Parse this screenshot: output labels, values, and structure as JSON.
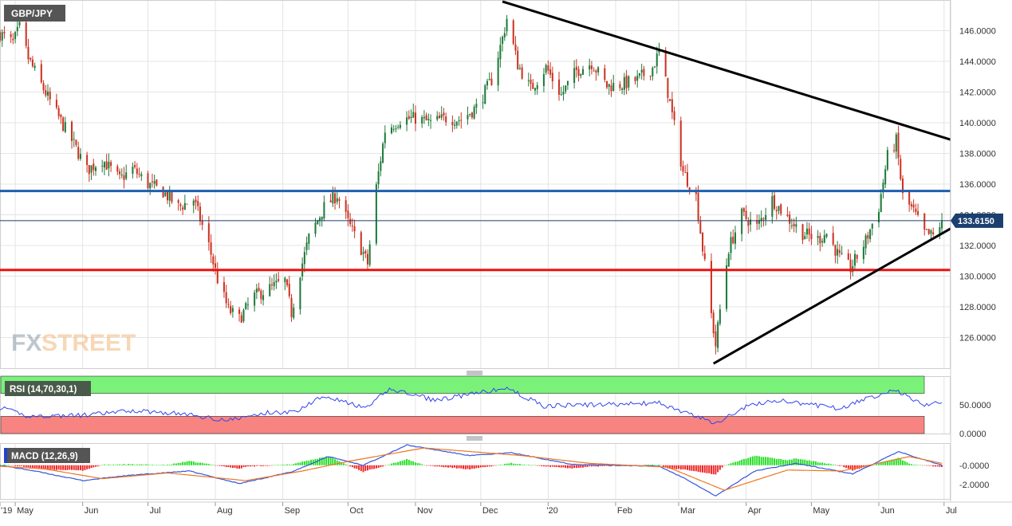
{
  "symbol_label": "GBP/JPY",
  "watermark": {
    "fx": "FX",
    "street": "STREET"
  },
  "colors": {
    "up": "#1f7a3a",
    "down": "#cc3322",
    "grid": "#e4e4e4",
    "resistance": "#1f5fae",
    "support": "#ee1111",
    "trend": "#000000",
    "rsi_line": "#3344ee",
    "macd_line": "#3355dd",
    "signal_line": "#ee7722",
    "hist_up": "#22dd22",
    "hist_down": "#ee2222",
    "rsi_overbought_fill": "#7af27a",
    "rsi_oversold_fill": "#f78480",
    "price_label_bg": "#1b3f6e"
  },
  "chart_data": [
    {
      "type": "candlestick",
      "title": "GBP/JPY",
      "ylim": [
        124.0,
        148.0
      ],
      "y_ticks": [
        "146.0000",
        "144.0000",
        "142.0000",
        "140.0000",
        "138.0000",
        "136.0000",
        "134.0000",
        "132.0000",
        "130.0000",
        "128.0000",
        "126.0000"
      ],
      "last_price_label": "133.6150",
      "last_price": 133.615,
      "resistance_level": 135.55,
      "support_level": 130.4,
      "trendlines": [
        {
          "name": "Descending resistance",
          "from": [
            "2019-12-11",
            147.9
          ],
          "to": [
            "2020-07-04",
            138.9
          ]
        },
        {
          "name": "Ascending support",
          "from": [
            "2020-03-17",
            124.3
          ],
          "to": [
            "2020-07-04",
            133.1
          ]
        }
      ],
      "x_start": "2019-04-24",
      "x_end": "2020-07-04",
      "x_ticks": [
        {
          "label": "'19",
          "date": "2019-04-24"
        },
        {
          "label": "May",
          "date": "2019-05-01"
        },
        {
          "label": "Jun",
          "date": "2019-06-01"
        },
        {
          "label": "Jul",
          "date": "2019-07-01"
        },
        {
          "label": "Aug",
          "date": "2019-08-01"
        },
        {
          "label": "Sep",
          "date": "2019-09-01"
        },
        {
          "label": "Oct",
          "date": "2019-10-01"
        },
        {
          "label": "Nov",
          "date": "2019-11-01"
        },
        {
          "label": "Dec",
          "date": "2019-12-01"
        },
        {
          "label": "'20",
          "date": "2020-01-01"
        },
        {
          "label": "Feb",
          "date": "2020-02-01"
        },
        {
          "label": "Mar",
          "date": "2020-03-01"
        },
        {
          "label": "Apr",
          "date": "2020-04-01"
        },
        {
          "label": "May",
          "date": "2020-05-01"
        },
        {
          "label": "Jun",
          "date": "2020-06-01"
        },
        {
          "label": "Jul",
          "date": "2020-07-01"
        }
      ],
      "close_anchors": [
        [
          "2019-04-24",
          145.8
        ],
        [
          "2019-04-30",
          145.2
        ],
        [
          "2019-05-03",
          146.2
        ],
        [
          "2019-05-07",
          144.2
        ],
        [
          "2019-05-14",
          142.2
        ],
        [
          "2019-05-20",
          140.6
        ],
        [
          "2019-05-28",
          138.6
        ],
        [
          "2019-06-03",
          136.9
        ],
        [
          "2019-06-10",
          137.6
        ],
        [
          "2019-06-18",
          136.3
        ],
        [
          "2019-06-24",
          137.0
        ],
        [
          "2019-07-01",
          136.0
        ],
        [
          "2019-07-08",
          135.5
        ],
        [
          "2019-07-15",
          134.5
        ],
        [
          "2019-07-22",
          135.0
        ],
        [
          "2019-07-29",
          132.0
        ],
        [
          "2019-08-02",
          129.8
        ],
        [
          "2019-08-07",
          127.8
        ],
        [
          "2019-08-12",
          127.2
        ],
        [
          "2019-08-19",
          128.7
        ],
        [
          "2019-08-26",
          129.2
        ],
        [
          "2019-09-02",
          129.7
        ],
        [
          "2019-09-05",
          127.6
        ],
        [
          "2019-09-09",
          130.3
        ],
        [
          "2019-09-13",
          132.5
        ],
        [
          "2019-09-20",
          134.5
        ],
        [
          "2019-09-26",
          135.3
        ],
        [
          "2019-10-01",
          133.5
        ],
        [
          "2019-10-08",
          131.5
        ],
        [
          "2019-10-10",
          130.8
        ],
        [
          "2019-10-14",
          135.8
        ],
        [
          "2019-10-18",
          139.5
        ],
        [
          "2019-10-25",
          140.2
        ],
        [
          "2019-11-01",
          140.3
        ],
        [
          "2019-11-08",
          140.0
        ],
        [
          "2019-11-15",
          140.3
        ],
        [
          "2019-11-22",
          140.2
        ],
        [
          "2019-11-29",
          141.0
        ],
        [
          "2019-12-06",
          142.8
        ],
        [
          "2019-12-11",
          145.5
        ],
        [
          "2019-12-13",
          146.8
        ],
        [
          "2019-12-18",
          143.8
        ],
        [
          "2019-12-24",
          142.2
        ],
        [
          "2019-12-31",
          143.6
        ],
        [
          "2020-01-07",
          141.8
        ],
        [
          "2020-01-14",
          143.4
        ],
        [
          "2020-01-21",
          143.9
        ],
        [
          "2020-01-28",
          142.4
        ],
        [
          "2020-02-04",
          142.5
        ],
        [
          "2020-02-11",
          142.8
        ],
        [
          "2020-02-18",
          143.6
        ],
        [
          "2020-02-21",
          144.6
        ],
        [
          "2020-02-25",
          142.0
        ],
        [
          "2020-03-03",
          136.8
        ],
        [
          "2020-03-09",
          135.2
        ],
        [
          "2020-03-12",
          131.8
        ],
        [
          "2020-03-16",
          127.5
        ],
        [
          "2020-03-18",
          125.5
        ],
        [
          "2020-03-20",
          127.8
        ],
        [
          "2020-03-24",
          131.8
        ],
        [
          "2020-03-30",
          134.0
        ],
        [
          "2020-04-06",
          133.2
        ],
        [
          "2020-04-13",
          135.0
        ],
        [
          "2020-04-20",
          133.8
        ],
        [
          "2020-04-27",
          132.8
        ],
        [
          "2020-05-04",
          132.4
        ],
        [
          "2020-05-08",
          132.8
        ],
        [
          "2020-05-14",
          131.2
        ],
        [
          "2020-05-19",
          130.5
        ],
        [
          "2020-05-26",
          132.3
        ],
        [
          "2020-06-01",
          134.5
        ],
        [
          "2020-06-05",
          137.8
        ],
        [
          "2020-06-09",
          138.8
        ],
        [
          "2020-06-12",
          135.2
        ],
        [
          "2020-06-17",
          134.2
        ],
        [
          "2020-06-22",
          132.8
        ],
        [
          "2020-06-26",
          132.6
        ],
        [
          "2020-06-30",
          133.6
        ]
      ]
    },
    {
      "type": "line",
      "title": "RSI (14,70,30,1)",
      "ylim": [
        0,
        100
      ],
      "overbought": 70,
      "oversold": 30,
      "y_ticks": [
        "50.0000",
        "0.0000"
      ],
      "series": [
        {
          "name": "RSI",
          "anchors": [
            [
              "2019-04-24",
              45
            ],
            [
              "2019-05-07",
              30
            ],
            [
              "2019-06-03",
              32
            ],
            [
              "2019-06-24",
              40
            ],
            [
              "2019-07-15",
              35
            ],
            [
              "2019-08-07",
              23
            ],
            [
              "2019-08-26",
              37
            ],
            [
              "2019-09-06",
              37
            ],
            [
              "2019-09-20",
              67
            ],
            [
              "2019-10-09",
              43
            ],
            [
              "2019-10-20",
              78
            ],
            [
              "2019-11-10",
              58
            ],
            [
              "2019-12-13",
              79
            ],
            [
              "2019-12-30",
              48
            ],
            [
              "2020-02-21",
              53
            ],
            [
              "2020-03-10",
              28
            ],
            [
              "2020-03-18",
              18
            ],
            [
              "2020-04-01",
              47
            ],
            [
              "2020-04-14",
              58
            ],
            [
              "2020-05-14",
              44
            ],
            [
              "2020-06-08",
              77
            ],
            [
              "2020-06-22",
              50
            ],
            [
              "2020-06-30",
              54
            ]
          ]
        }
      ]
    },
    {
      "type": "line",
      "title": "MACD (12,26,9)",
      "ylim": [
        -3.5,
        2.3
      ],
      "y_ticks": [
        "-0.0000",
        "-2.0000"
      ],
      "series": [
        {
          "name": "MACD",
          "anchors": [
            [
              "2019-04-24",
              0.0
            ],
            [
              "2019-05-10",
              -0.6
            ],
            [
              "2019-06-01",
              -1.6
            ],
            [
              "2019-06-20",
              -1.1
            ],
            [
              "2019-07-20",
              -0.6
            ],
            [
              "2019-08-12",
              -1.9
            ],
            [
              "2019-09-05",
              -0.7
            ],
            [
              "2019-09-22",
              0.9
            ],
            [
              "2019-10-08",
              0.0
            ],
            [
              "2019-10-28",
              2.1
            ],
            [
              "2019-11-26",
              1.0
            ],
            [
              "2019-12-15",
              1.3
            ],
            [
              "2020-01-12",
              0.1
            ],
            [
              "2020-02-21",
              -0.1
            ],
            [
              "2020-03-05",
              -1.5
            ],
            [
              "2020-03-18",
              -3.2
            ],
            [
              "2020-04-05",
              -0.6
            ],
            [
              "2020-04-24",
              0.2
            ],
            [
              "2020-05-20",
              -0.9
            ],
            [
              "2020-06-10",
              1.4
            ],
            [
              "2020-06-30",
              0.0
            ]
          ]
        },
        {
          "name": "Signal",
          "anchors": [
            [
              "2019-04-24",
              -0.1
            ],
            [
              "2019-05-15",
              -0.4
            ],
            [
              "2019-06-10",
              -1.4
            ],
            [
              "2019-07-10",
              -0.8
            ],
            [
              "2019-08-15",
              -1.6
            ],
            [
              "2019-09-10",
              -0.6
            ],
            [
              "2019-10-01",
              0.4
            ],
            [
              "2019-11-05",
              1.8
            ],
            [
              "2019-12-20",
              1.0
            ],
            [
              "2020-01-20",
              0.2
            ],
            [
              "2020-02-25",
              -0.2
            ],
            [
              "2020-03-22",
              -2.6
            ],
            [
              "2020-04-20",
              -0.5
            ],
            [
              "2020-05-15",
              -0.6
            ],
            [
              "2020-06-15",
              0.9
            ],
            [
              "2020-06-30",
              0.2
            ]
          ]
        }
      ]
    }
  ]
}
